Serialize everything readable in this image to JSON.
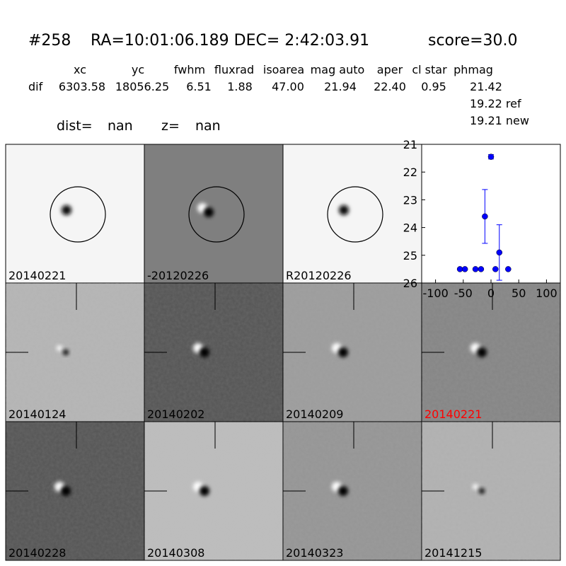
{
  "header": {
    "id": "#258",
    "coords": "RA=10:01:06.189 DEC= 2:42:03.91",
    "score": "score=30.0"
  },
  "table": {
    "headers": [
      "xc",
      "yc",
      "fwhm",
      "fluxrad",
      "isoarea",
      "mag auto",
      "aper",
      "cl star",
      "phmag"
    ],
    "row_label": "dif",
    "values": [
      "6303.58",
      "18056.25",
      "6.51",
      "1.88",
      "47.00",
      "21.94",
      "22.40",
      "0.95",
      "21.42"
    ],
    "extra": [
      "19.22 ref",
      "19.21 new"
    ]
  },
  "dist": {
    "dist_label": "dist=",
    "dist_value": "nan",
    "z_label": "z=",
    "z_value": "nan"
  },
  "stamps": [
    "20140221",
    "-20120226",
    "R20120226",
    "20140124",
    "20140202",
    "20140209",
    "20140221",
    "20140228",
    "20140308",
    "20140323",
    "20141215"
  ],
  "chart_data": {
    "type": "scatter",
    "color": "#0000ff",
    "x": [
      -56,
      -47,
      -28,
      -18,
      -11,
      0,
      8,
      15,
      31
    ],
    "values": [
      25.5,
      25.5,
      25.5,
      25.5,
      23.6,
      21.45,
      25.5,
      24.9,
      25.5
    ],
    "errors": [
      null,
      null,
      null,
      null,
      0.97,
      0.08,
      null,
      1.0,
      null
    ],
    "xlim": [
      -125,
      125
    ],
    "ylim": [
      26,
      21
    ],
    "xticks": [
      -100,
      -50,
      0,
      50,
      100
    ],
    "yticks": [
      21,
      22,
      23,
      24,
      25,
      26
    ]
  }
}
